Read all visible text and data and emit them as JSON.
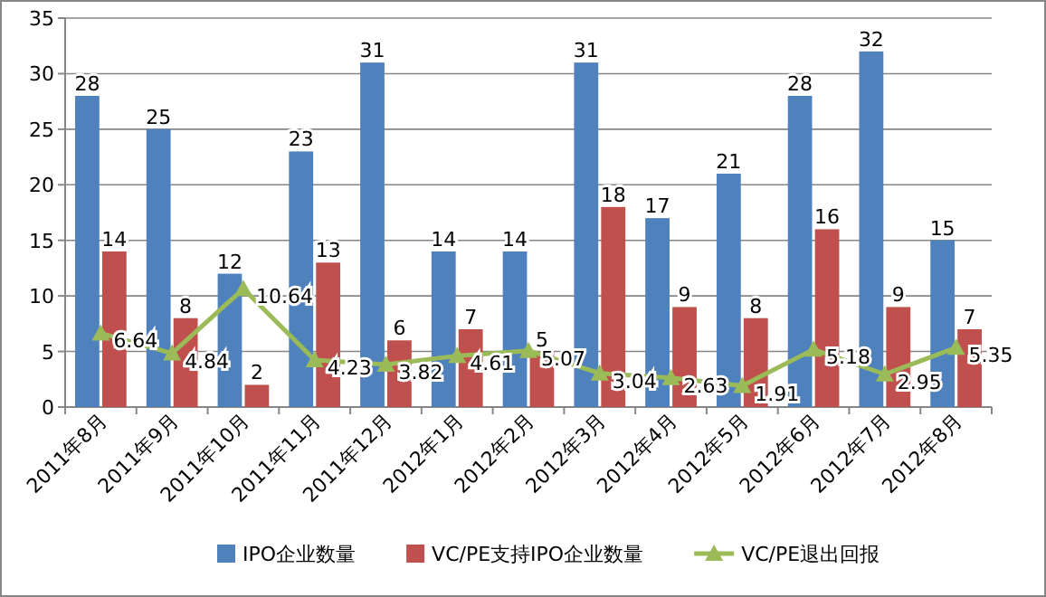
{
  "chart_data": {
    "type": "bar",
    "categories": [
      "2011年8月",
      "2011年9月",
      "2011年10月",
      "2011年11月",
      "2011年12月",
      "2012年1月",
      "2012年2月",
      "2012年3月",
      "2012年4月",
      "2012年5月",
      "2012年6月",
      "2012年7月",
      "2012年8月"
    ],
    "series": [
      {
        "name": "IPO企业数量",
        "color": "#4f81bd",
        "values": [
          28,
          25,
          12,
          23,
          31,
          14,
          14,
          31,
          17,
          21,
          28,
          32,
          15
        ]
      },
      {
        "name": "VC/PE支持IPO企业数量",
        "color": "#c0504d",
        "values": [
          14,
          8,
          2,
          13,
          6,
          7,
          5,
          18,
          9,
          8,
          16,
          9,
          7
        ]
      },
      {
        "name": "VC/PE退出回报",
        "type": "line",
        "color": "#9bbb59",
        "marker": "triangle",
        "values": [
          6.64,
          4.84,
          10.64,
          4.23,
          3.82,
          4.61,
          5.07,
          3.04,
          2.63,
          1.91,
          5.18,
          2.95,
          5.35
        ]
      }
    ],
    "ylim": [
      0,
      35
    ],
    "yticks": [
      0,
      5,
      10,
      15,
      20,
      25,
      30,
      35
    ],
    "grid": "y",
    "legend": "bottom",
    "data_labels": true
  }
}
